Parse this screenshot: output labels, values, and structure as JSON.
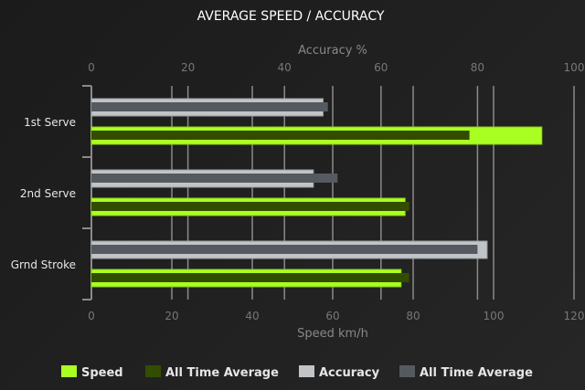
{
  "chart_data": {
    "type": "bar",
    "orientation": "horizontal",
    "title": "AVERAGE SPEED / ACCURACY",
    "categories": [
      "1st Serve",
      "2nd Serve",
      "Grnd Stroke"
    ],
    "top_axis": {
      "label": "Accuracy %",
      "range": [
        0,
        100
      ],
      "ticks": [
        "0",
        "20",
        "40",
        "60",
        "80",
        "100"
      ]
    },
    "bottom_axis": {
      "label": "Speed km/h",
      "range": [
        0,
        120
      ],
      "ticks": [
        "0",
        "20",
        "40",
        "60",
        "80",
        "100",
        "120"
      ]
    },
    "series": [
      {
        "name": "Speed",
        "axis": "bottom",
        "color": "#aaff22",
        "values": [
          112,
          78,
          77
        ]
      },
      {
        "name": "All Time Average",
        "axis": "bottom",
        "color": "#334d00",
        "values": [
          94,
          79,
          79
        ]
      },
      {
        "name": "Accuracy",
        "axis": "top",
        "color": "#c0c4c6",
        "values": [
          48,
          46,
          82
        ]
      },
      {
        "name": "All Time Average",
        "axis": "top",
        "color": "#555a60",
        "values": [
          49,
          51,
          80
        ]
      }
    ],
    "grid": true,
    "legend": "bottom"
  }
}
